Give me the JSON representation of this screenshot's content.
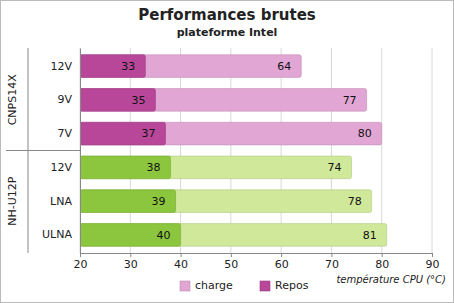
{
  "chart_data": {
    "type": "bar",
    "orientation": "horizontal",
    "title": "Performances brutes",
    "subtitle": "plateforme Intel",
    "x_label": "température  CPU (°C)",
    "categories": [
      "12V",
      "9V",
      "7V",
      "12V",
      "LNA",
      "ULNA"
    ],
    "groups": [
      {
        "name": "CNPS14X",
        "size": 3
      },
      {
        "name": "NH-U12P",
        "size": 3
      }
    ],
    "series": [
      {
        "name": "charge",
        "color": "#e2a6d4",
        "colors": [
          "#e2a6d4",
          "#e2a6d4",
          "#e2a6d4",
          "#cfe89a",
          "#cfe89a",
          "#cfe89a"
        ],
        "values": [
          64,
          77,
          80,
          74,
          78,
          81
        ]
      },
      {
        "name": "Repos",
        "color": "#b8479a",
        "colors": [
          "#b8479a",
          "#b8479a",
          "#b8479a",
          "#8cc63f",
          "#8cc63f",
          "#8cc63f"
        ],
        "values": [
          33,
          35,
          37,
          38,
          39,
          40
        ]
      }
    ],
    "xlim": [
      20,
      90
    ],
    "xticks": [
      20,
      30,
      40,
      50,
      60,
      70,
      80,
      90
    ],
    "grid": true,
    "legend": "bottom",
    "data_labels": true
  }
}
